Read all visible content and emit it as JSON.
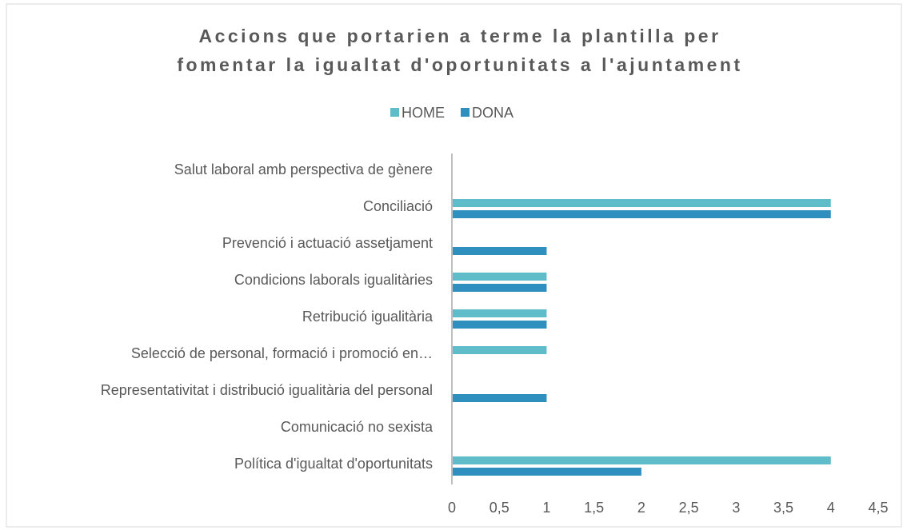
{
  "chart_data": {
    "type": "hbar",
    "title": [
      "Accions que portarien a terme la plantilla per",
      "fomentar la igualtat d'oportunitats a l'ajuntament"
    ],
    "categories": [
      "Salut laboral amb perspectiva de gènere",
      "Conciliació",
      "Prevenció i actuació assetjament",
      "Condicions laborals igualitàries",
      "Retribució igualitària",
      "Selecció de personal, formació i promoció en…",
      "Representativitat i distribució igualitària del personal",
      "Comunicació no sexista",
      "Política d'igualtat d'oportunitats"
    ],
    "series": [
      {
        "name": "HOME",
        "color": "#5fbdca",
        "values": [
          0,
          4,
          0,
          1,
          1,
          1,
          0,
          0,
          4
        ]
      },
      {
        "name": "DONA",
        "color": "#2f8fbf",
        "values": [
          0,
          4,
          1,
          1,
          1,
          0,
          1,
          0,
          2
        ]
      }
    ],
    "xlim": [
      0,
      4.5
    ],
    "xticks": [
      0,
      {
        "value": 0.5,
        "label": "0,5"
      },
      1,
      {
        "value": 1.5,
        "label": "1,5"
      },
      2,
      {
        "value": 2.5,
        "label": "2,5"
      },
      3,
      {
        "value": 3.5,
        "label": "3,5"
      },
      4,
      {
        "value": 4.5,
        "label": "4,5"
      }
    ],
    "legend": "top",
    "grid": false
  }
}
